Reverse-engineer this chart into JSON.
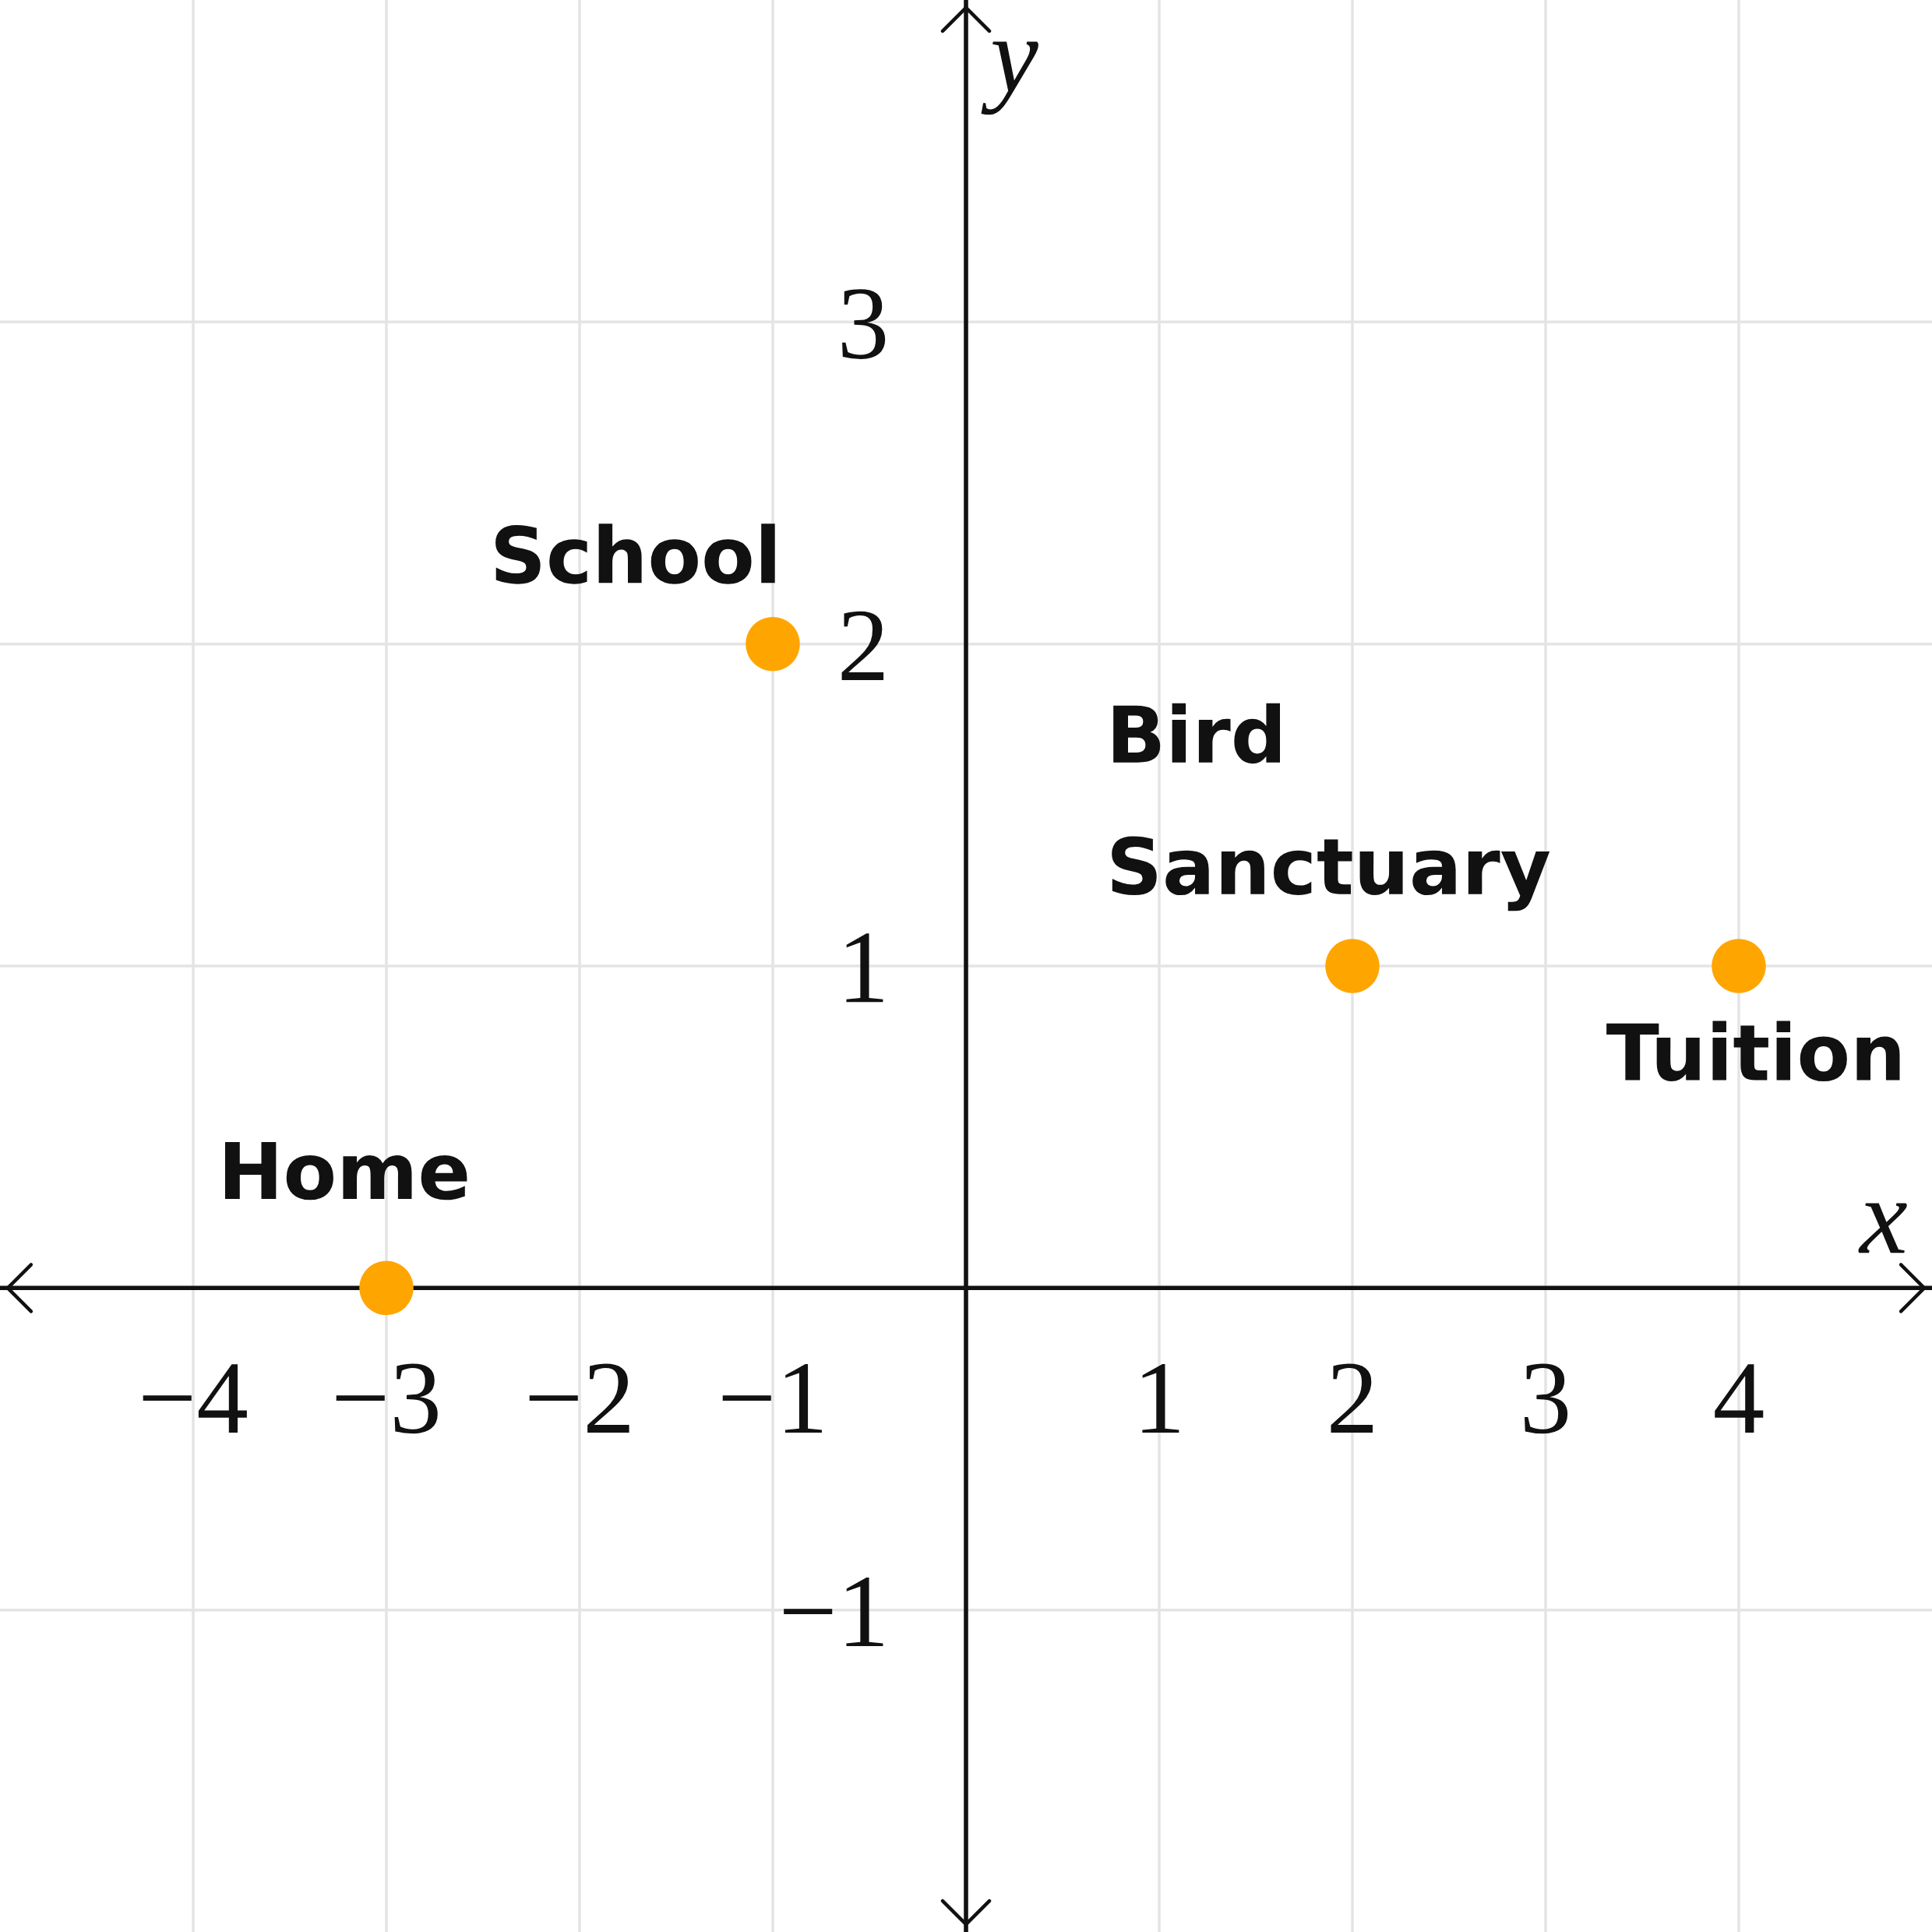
{
  "chart_data": {
    "type": "scatter",
    "xlabel": "x",
    "ylabel": "y",
    "x": [
      -3,
      -1,
      2,
      4
    ],
    "values": [
      0,
      2,
      1,
      1
    ],
    "color": "#ffa500",
    "marker": "circle",
    "xlim": [
      -5,
      5
    ],
    "ylim": [
      -2,
      4
    ],
    "xticks": [
      {
        "value": -4,
        "label": "−4"
      },
      {
        "value": -3,
        "label": "−3"
      },
      {
        "value": -2,
        "label": "−2"
      },
      {
        "value": -1,
        "label": "−1"
      },
      1,
      2,
      3,
      4
    ],
    "yticks": [
      {
        "value": -1,
        "label": "−1"
      },
      1,
      2,
      3
    ],
    "grid": true,
    "annotations": [
      {
        "text": "Home",
        "x": -3,
        "y": 0
      },
      {
        "text": "School",
        "x": -1,
        "y": 2
      },
      {
        "text": "Bird\nSanctuary",
        "x": 2,
        "y": 1
      },
      {
        "text": "Tuition",
        "x": 4,
        "y": 1
      }
    ]
  }
}
